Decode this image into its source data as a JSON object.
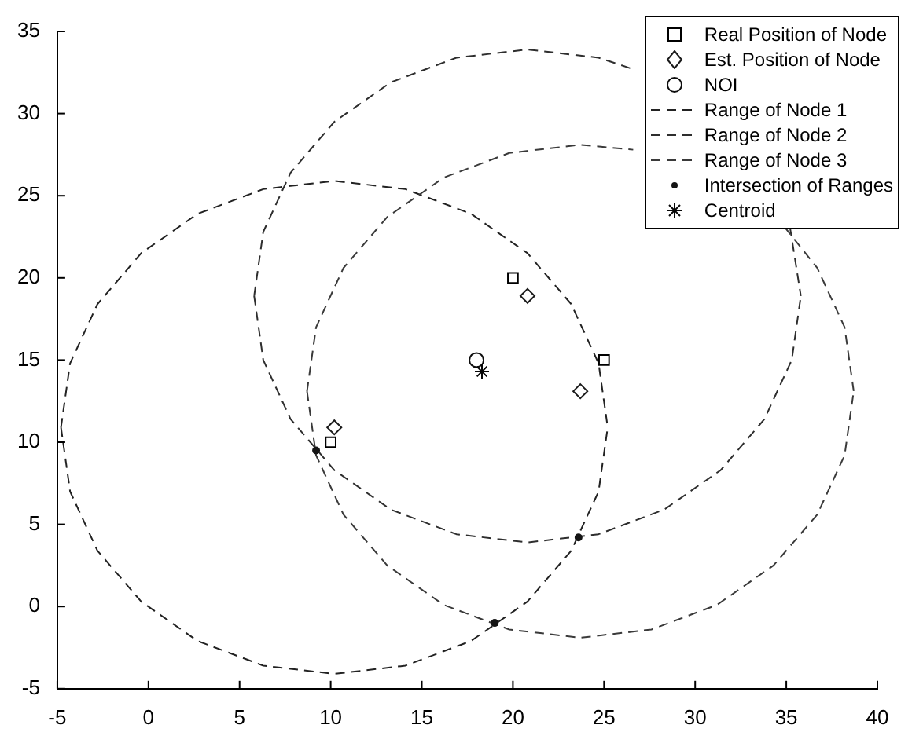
{
  "chart_data": {
    "type": "scatter",
    "legend": "top right",
    "grid": false,
    "xlim": [
      -5,
      40
    ],
    "xticks": [
      -5,
      0,
      5,
      10,
      15,
      20,
      25,
      30,
      35,
      40
    ],
    "ylim": [
      -5,
      35
    ],
    "yticks": [
      -5,
      0,
      5,
      10,
      15,
      20,
      25,
      30,
      35
    ],
    "series": [
      {
        "name": "Real Position of Node",
        "type": "scatter",
        "marker": "square",
        "color": "#000000",
        "x": [
          10,
          20,
          25
        ],
        "values": [
          10,
          20,
          15
        ]
      },
      {
        "name": "Est. Position of Node",
        "type": "scatter",
        "marker": "diamond",
        "color": "#1a1a1a",
        "x": [
          10.2,
          20.8,
          23.7
        ],
        "values": [
          10.9,
          18.9,
          13.1
        ]
      },
      {
        "name": "NOI",
        "type": "scatter",
        "marker": "circle",
        "color": "#0d0d0d",
        "x": [
          18
        ],
        "values": [
          15
        ]
      },
      {
        "name": "Range of Node 1",
        "type": "line",
        "marker": "none",
        "line_style": "dashed",
        "color": "#222222",
        "x": [
          -4.8,
          -4.3,
          -2.8,
          -0.4,
          2.7,
          6.3,
          10.2,
          14.1,
          17.7,
          20.8,
          23.2,
          24.7,
          25.2,
          null,
          -4.8,
          -4.3,
          -2.8,
          -0.4,
          2.7,
          6.3,
          10.2,
          14.1,
          17.7,
          20.8,
          23.2,
          24.7,
          25.2
        ],
        "values": [
          10.9,
          14.8,
          18.4,
          21.5,
          23.9,
          25.4,
          25.9,
          25.4,
          23.9,
          21.5,
          18.4,
          14.8,
          10.9,
          null,
          10.9,
          7.0,
          3.4,
          0.3,
          -2.1,
          -3.6,
          -4.1,
          -3.6,
          -2.1,
          0.3,
          3.4,
          7.0,
          10.9
        ]
      },
      {
        "name": "Range of Node 2",
        "type": "line",
        "marker": "none",
        "line_style": "dashed",
        "color": "#2e2e2e",
        "x": [
          5.8,
          6.3,
          7.8,
          10.2,
          13.3,
          16.9,
          20.8,
          24.7,
          26.6,
          null,
          35.2,
          35.8,
          null,
          5.8,
          6.3,
          7.8,
          10.2,
          13.3,
          16.9,
          20.8,
          24.7,
          28.3,
          31.4,
          33.8,
          35.3,
          35.8
        ],
        "values": [
          18.9,
          22.8,
          26.4,
          29.5,
          31.9,
          33.4,
          33.9,
          33.4,
          32.7,
          null,
          23.1,
          18.9,
          null,
          18.9,
          15.0,
          11.4,
          8.3,
          5.9,
          4.4,
          3.9,
          4.4,
          5.9,
          8.3,
          11.4,
          15.0,
          18.9
        ]
      },
      {
        "name": "Range of Node 3",
        "type": "line",
        "marker": "none",
        "line_style": "dashed",
        "color": "#3a3a3a",
        "x": [
          8.7,
          9.2,
          10.7,
          13.1,
          16.2,
          19.8,
          23.7,
          26.6,
          null,
          34.9,
          36.7,
          38.2,
          38.7,
          null,
          8.7,
          9.2,
          10.7,
          13.1,
          16.2,
          19.8,
          23.7,
          27.6,
          31.2,
          34.3,
          36.7,
          38.2,
          38.7
        ],
        "values": [
          13.1,
          17.0,
          20.6,
          23.7,
          26.1,
          27.6,
          28.1,
          27.8,
          null,
          23.1,
          20.6,
          17.0,
          13.1,
          null,
          13.1,
          9.2,
          5.6,
          2.5,
          0.1,
          -1.4,
          -1.9,
          -1.4,
          0.1,
          2.5,
          5.6,
          9.2,
          13.1
        ]
      },
      {
        "name": "Intersection of Ranges",
        "type": "scatter",
        "marker": "circle",
        "color": "#141414",
        "x": [
          9.2,
          23.6,
          19.0
        ],
        "values": [
          9.5,
          4.2,
          -1.0
        ]
      },
      {
        "name": "Centroid",
        "type": "scatter",
        "marker": "cross",
        "color": "#070707",
        "x": [
          18.3
        ],
        "values": [
          14.3
        ]
      }
    ]
  }
}
